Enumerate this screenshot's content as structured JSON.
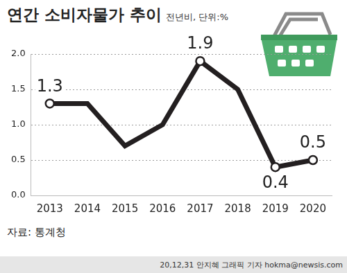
{
  "chart_data": {
    "type": "line",
    "title": "연간 소비자물가 추이",
    "subtitle": "전년비, 단위:%",
    "categories": [
      "2013",
      "2014",
      "2015",
      "2016",
      "2017",
      "2018",
      "2019",
      "2020"
    ],
    "values": [
      1.3,
      1.3,
      0.7,
      1.0,
      1.9,
      1.5,
      0.4,
      0.5
    ],
    "value_labels": [
      "1.3",
      null,
      null,
      null,
      "1.9",
      null,
      "0.4",
      "0.5"
    ],
    "color": "#231f20",
    "marker": "circle",
    "data_labels": true,
    "ylim": [
      0,
      2
    ],
    "yticks": [
      {
        "value": 0,
        "label": "0.0"
      },
      {
        "value": 0.5,
        "label": "0.5"
      },
      {
        "value": 1,
        "label": "1.0"
      },
      {
        "value": 1.5,
        "label": "1.5"
      },
      {
        "value": 2,
        "label": "2.0"
      }
    ],
    "grid": true,
    "source": "자료: 통계청",
    "credit": "20,12,31 안지혜 그래픽 기자 hokma@newsis.com"
  }
}
